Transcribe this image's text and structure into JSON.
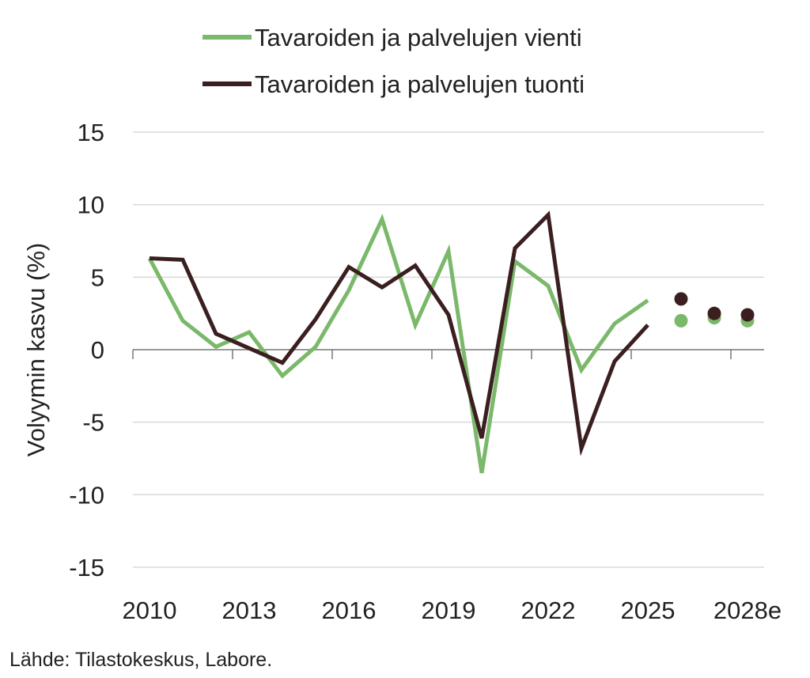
{
  "chart_data": {
    "type": "line",
    "title": "",
    "xlabel": "",
    "ylabel": "Volyymin kasvu (%)",
    "ylim": [
      -15,
      15
    ],
    "yticks": [
      "15",
      "10",
      "5",
      "0",
      "-5",
      "-10",
      "-15"
    ],
    "ytick_values": [
      15,
      10,
      5,
      0,
      -5,
      -10,
      -15
    ],
    "xticks": [
      "2010",
      "2013",
      "2016",
      "2019",
      "2022",
      "2025",
      "2028e"
    ],
    "xtick_years": [
      2010,
      2013,
      2016,
      2019,
      2022,
      2025,
      2028
    ],
    "grid": "horizontal",
    "legend_position": "top",
    "x": [
      2010,
      2011,
      2012,
      2013,
      2014,
      2015,
      2016,
      2017,
      2018,
      2019,
      2020,
      2021,
      2022,
      2023,
      2024,
      2025
    ],
    "forecast_x": [
      2026,
      2027,
      2028
    ],
    "series": [
      {
        "name": "Tavaroiden ja palvelujen vienti",
        "color": "#7ab86a",
        "values": [
          6.3,
          2.0,
          0.2,
          1.2,
          -1.8,
          0.2,
          4.1,
          9.0,
          1.7,
          6.8,
          -8.5,
          6.1,
          4.4,
          -1.4,
          1.8,
          3.4
        ],
        "forecast": [
          2.0,
          2.2,
          2.0
        ]
      },
      {
        "name": "Tavaroiden ja palvelujen tuonti",
        "color": "#3b1f20",
        "values": [
          6.3,
          6.2,
          1.1,
          0.1,
          -0.9,
          2.1,
          5.7,
          4.3,
          5.8,
          2.4,
          -6.1,
          7.0,
          9.3,
          -6.8,
          -0.8,
          1.7
        ],
        "forecast": [
          3.5,
          2.5,
          2.4
        ]
      }
    ]
  },
  "source": "Lähde: Tilastokeskus, Labore."
}
